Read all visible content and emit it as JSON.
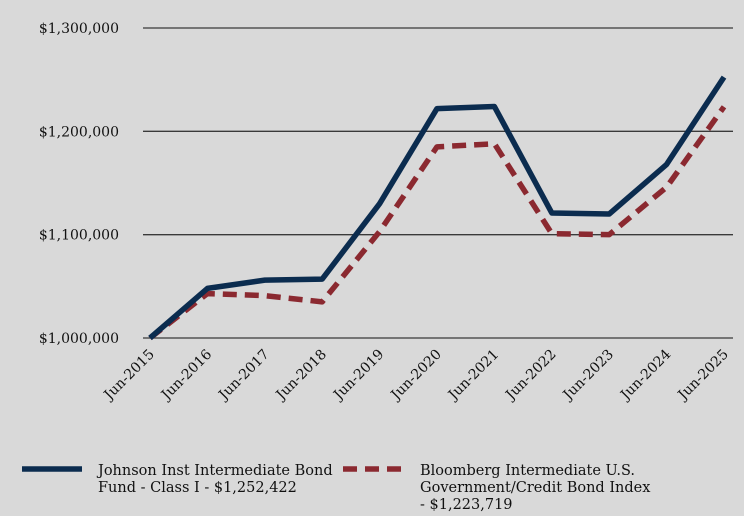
{
  "chart_data": {
    "type": "line",
    "title": "",
    "xlabel": "",
    "ylabel": "",
    "categories": [
      "Jun-2015",
      "Jun-2016",
      "Jun-2017",
      "Jun-2018",
      "Jun-2019",
      "Jun-2020",
      "Jun-2021",
      "Jun-2022",
      "Jun-2023",
      "Jun-2024",
      "Jun-2025"
    ],
    "ylim": [
      1000000,
      1300000
    ],
    "yticks": [
      1000000,
      1100000,
      1200000,
      1300000
    ],
    "ytick_labels": [
      "$1,000,000",
      "$1,100,000",
      "$1,200,000",
      "$1,300,000"
    ],
    "grid": "horizontal",
    "legend_position": "bottom",
    "series": [
      {
        "name": "Johnson Inst Intermediate Bond Fund - Class I - $1,252,422",
        "legend_lines": [
          "Johnson Inst Intermediate Bond",
          "Fund - Class I - $1,252,422"
        ],
        "color": "#0b2c4f",
        "style": "solid",
        "values": [
          1000000,
          1048000,
          1056000,
          1057000,
          1130000,
          1222000,
          1224000,
          1121000,
          1120000,
          1168000,
          1252422
        ]
      },
      {
        "name": "Bloomberg Intermediate U.S. Government/Credit Bond Index - $1,223,719",
        "legend_lines": [
          "Bloomberg Intermediate U.S.",
          "Government/Credit Bond Index",
          "- $1,223,719"
        ],
        "color": "#8b2930",
        "style": "dashed",
        "values": [
          1000000,
          1043000,
          1041000,
          1035000,
          1103000,
          1185000,
          1188000,
          1101000,
          1100000,
          1146000,
          1223719
        ]
      }
    ]
  }
}
